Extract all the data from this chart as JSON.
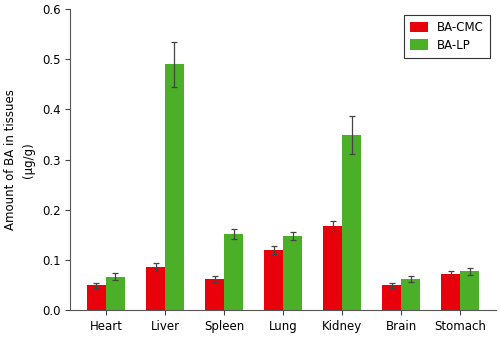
{
  "categories": [
    "Heart",
    "Liver",
    "Spleen",
    "Lung",
    "Kidney",
    "Brain",
    "Stomach"
  ],
  "ba_cmc_values": [
    0.05,
    0.085,
    0.063,
    0.12,
    0.168,
    0.05,
    0.072
  ],
  "ba_lp_values": [
    0.067,
    0.49,
    0.152,
    0.148,
    0.35,
    0.062,
    0.077
  ],
  "ba_cmc_errors": [
    0.005,
    0.008,
    0.006,
    0.008,
    0.01,
    0.005,
    0.006
  ],
  "ba_lp_errors": [
    0.006,
    0.045,
    0.01,
    0.008,
    0.038,
    0.006,
    0.007
  ],
  "ba_cmc_color": "#e8000a",
  "ba_lp_color": "#4caf28",
  "ylabel_line1": "Amount of BA in tissues",
  "ylabel_line2": "(μg/g)",
  "ylim": [
    0,
    0.6
  ],
  "yticks": [
    0.0,
    0.1,
    0.2,
    0.3,
    0.4,
    0.5,
    0.6
  ],
  "legend_labels": [
    "BA-CMC",
    "BA-LP"
  ],
  "bar_width": 0.32,
  "figure_width": 5.0,
  "figure_height": 3.37,
  "dpi": 100,
  "bg_color": "#f5f5f0"
}
